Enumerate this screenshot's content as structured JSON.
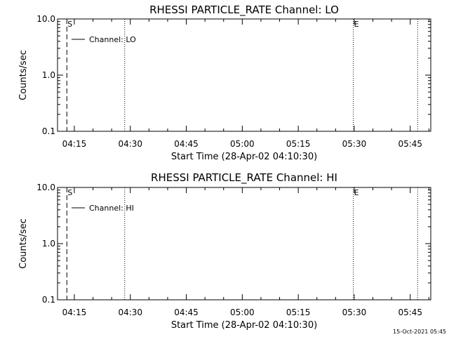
{
  "chart_data": [
    {
      "type": "line",
      "title": "RHESSI PARTICLE_RATE Channel: LO",
      "xlabel": "Start Time (28-Apr-02 04:10:30)",
      "ylabel": "Counts/sec",
      "yscale": "log",
      "ylim": [
        0.1,
        10.0
      ],
      "yticks": [
        {
          "value": 0.1,
          "label": "0.1"
        },
        {
          "value": 1.0,
          "label": "1.0"
        },
        {
          "value": 10.0,
          "label": "10.0"
        }
      ],
      "xlim": [
        "04:10:30",
        "05:50:30"
      ],
      "xticks": [
        "04:15",
        "04:30",
        "04:45",
        "05:00",
        "05:15",
        "05:30",
        "05:45"
      ],
      "legend": {
        "position": "top-left",
        "entries": [
          "Channel: LO"
        ]
      },
      "series": [
        {
          "name": "Channel: LO",
          "x": [],
          "y": []
        }
      ],
      "vlines": [
        {
          "x": "04:13:00",
          "style": "dashed"
        },
        {
          "x": "04:28:30",
          "style": "dotted"
        },
        {
          "x": "05:29:45",
          "style": "dotted"
        },
        {
          "x": "05:47:00",
          "style": "dotted"
        }
      ],
      "markers": [
        {
          "x": "04:13:00",
          "label": "S"
        },
        {
          "x": "05:29:45",
          "label": "E"
        }
      ],
      "grid": false
    },
    {
      "type": "line",
      "title": "RHESSI PARTICLE_RATE Channel: HI",
      "xlabel": "Start Time (28-Apr-02 04:10:30)",
      "ylabel": "Counts/sec",
      "yscale": "log",
      "ylim": [
        0.1,
        10.0
      ],
      "yticks": [
        {
          "value": 0.1,
          "label": "0.1"
        },
        {
          "value": 1.0,
          "label": "1.0"
        },
        {
          "value": 10.0,
          "label": "10.0"
        }
      ],
      "xlim": [
        "04:10:30",
        "05:50:30"
      ],
      "xticks": [
        "04:15",
        "04:30",
        "04:45",
        "05:00",
        "05:15",
        "05:30",
        "05:45"
      ],
      "legend": {
        "position": "top-left",
        "entries": [
          "Channel: HI"
        ]
      },
      "series": [
        {
          "name": "Channel: HI",
          "x": [],
          "y": []
        }
      ],
      "vlines": [
        {
          "x": "04:13:00",
          "style": "dashed"
        },
        {
          "x": "04:28:30",
          "style": "dotted"
        },
        {
          "x": "05:29:45",
          "style": "dotted"
        },
        {
          "x": "05:47:00",
          "style": "dotted"
        }
      ],
      "markers": [
        {
          "x": "04:13:00",
          "label": "S"
        },
        {
          "x": "05:29:45",
          "label": "E"
        }
      ],
      "grid": false
    }
  ],
  "footer": {
    "timestamp": "15-Oct-2021 05:45"
  }
}
